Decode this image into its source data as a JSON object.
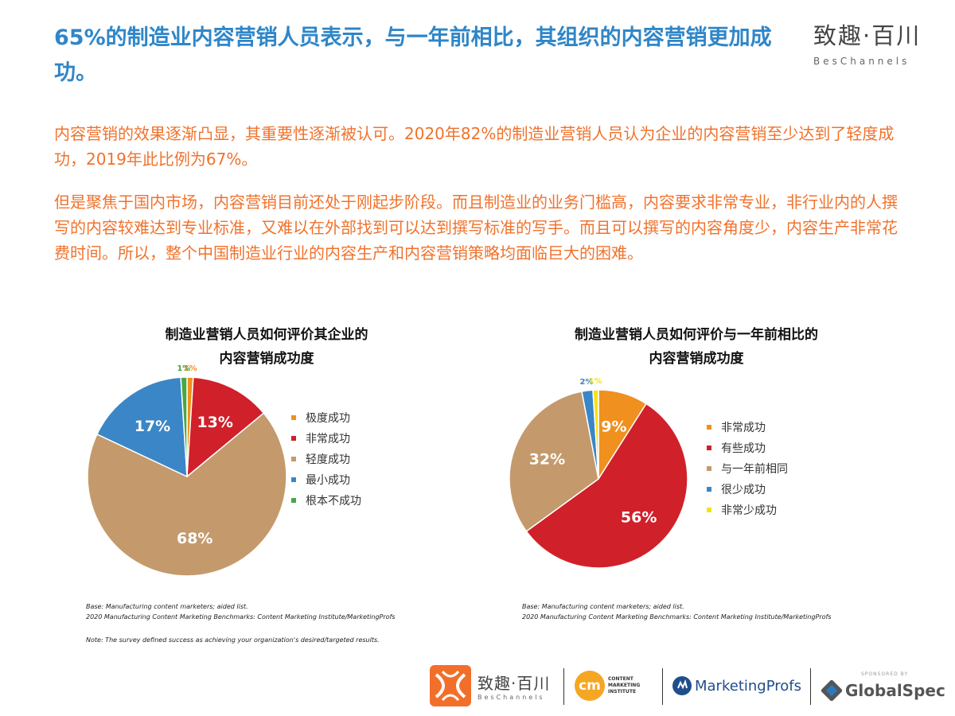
{
  "header": {
    "title": "65%的制造业内容营销人员表示，与一年前相比，其组织的内容营销更加成功。",
    "logo_cn": "致趣·百川",
    "logo_en": "BesChannels"
  },
  "body": {
    "para1": "内容营销的效果逐渐凸显，其重要性逐渐被认可。2020年82%的制造业营销人员认为企业的内容营销至少达到了轻度成功，2019年此比例为67%。",
    "para2": "但是聚焦于国内市场，内容营销目前还处于刚起步阶段。而且制造业的业务门槛高，内容要求非常专业，非行业内的人撰写的内容较难达到专业标准，又难以在外部找到可以达到撰写标准的写手。而且可以撰写的内容角度少，内容生产非常花费时间。所以，整个中国制造业行业的内容生产和内容营销策略均面临巨大的困难。"
  },
  "chart_data": [
    {
      "type": "pie",
      "title_line1": "制造业营销人员如何评价其企业的",
      "title_line2": "内容营销成功度",
      "categories": [
        "极度成功",
        "非常成功",
        "轻度成功",
        "最小成功",
        "根本不成功"
      ],
      "values": [
        1,
        13,
        68,
        17,
        1
      ],
      "labels": [
        "1%",
        "13%",
        "68%",
        "17%",
        "1%"
      ],
      "colors": [
        "#f0901e",
        "#d0202a",
        "#c49a6c",
        "#3b86c6",
        "#47a843"
      ],
      "legend_position": "right",
      "note_line1": "Base: Manufacturing content marketers; aided list.",
      "note_line2": "2020 Manufacturing Content Marketing Benchmarks: Content Marketing Institute/MarketingProfs",
      "note_line3": "Note: The survey defined success as achieving your organization's desired/targeted results."
    },
    {
      "type": "pie",
      "title_line1": "制造业营销人员如何评价与一年前相比的",
      "title_line2": "内容营销成功度",
      "categories": [
        "非常成功",
        "有些成功",
        "与一年前相同",
        "很少成功",
        "非常少成功"
      ],
      "values": [
        9,
        56,
        32,
        2,
        1
      ],
      "labels": [
        "9%",
        "56%",
        "32%",
        "2%",
        "1%"
      ],
      "colors": [
        "#f0901e",
        "#d0202a",
        "#c49a6c",
        "#3b86c6",
        "#f5e21c"
      ],
      "legend_position": "right",
      "note_line1": "Base: Manufacturing content marketers; aided list.",
      "note_line2": "2020 Manufacturing Content Marketing Benchmarks: Content Marketing Institute/MarketingProfs"
    }
  ],
  "footer": {
    "logo1_cn": "致趣·百川",
    "logo1_en": "BesChannels",
    "logo2_mark": "cm",
    "logo2_text": "CONTENT MARKETING INSTITUTE",
    "logo3_text": "MarketingProfs",
    "sponsored": "SPONSORED BY",
    "logo4_text": "GlobalSpec"
  }
}
